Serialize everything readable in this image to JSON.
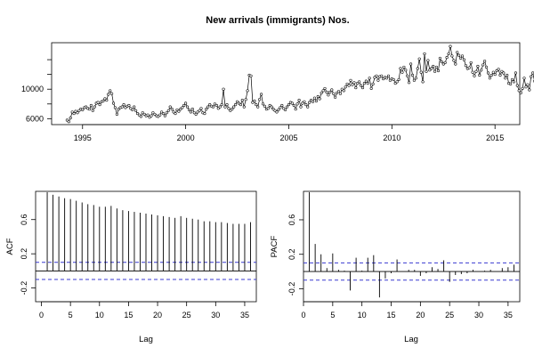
{
  "chart_data": [
    {
      "type": "line",
      "title": "New arrivals (immigrants) Nos.",
      "xlabel": "",
      "ylabel": "",
      "xlim": [
        1993.5,
        2016.2
      ],
      "ylim": [
        5200,
        16300
      ],
      "x_ticks": [
        1995,
        2000,
        2005,
        2010,
        2015
      ],
      "y_ticks": [
        6000,
        10000
      ],
      "grid": false,
      "start_year": 1994.25,
      "frequency": 12,
      "series": [
        {
          "values": [
            5800,
            5600,
            6100,
            6900,
            6700,
            7000,
            6800,
            7100,
            7300,
            7200,
            7500,
            7600,
            7400,
            7300,
            7800,
            7100,
            7600,
            8100,
            8200,
            7900,
            8300,
            8400,
            8700,
            8500,
            9300,
            9800,
            9400,
            8100,
            7500,
            6600,
            7300,
            7500,
            7600,
            7900,
            7500,
            7700,
            7800,
            7400,
            7200,
            7600,
            7100,
            6700,
            6500,
            6300,
            6800,
            6600,
            6400,
            6500,
            6200,
            6400,
            6800,
            6600,
            6400,
            6300,
            6500,
            6900,
            6700,
            6400,
            6800,
            7100,
            7600,
            7300,
            6900,
            6700,
            7200,
            7000,
            7300,
            7500,
            7800,
            8100,
            7600,
            7200,
            6900,
            7300,
            6800,
            6600,
            6900,
            7100,
            7400,
            6800,
            6700,
            7300,
            7600,
            7900,
            7700,
            7600,
            8000,
            7800,
            7400,
            7600,
            7900,
            10000,
            7600,
            7900,
            7400,
            7100,
            7300,
            7600,
            7900,
            8300,
            8100,
            7900,
            8500,
            7600,
            8600,
            9800,
            11900,
            11800,
            8200,
            8400,
            7900,
            7600,
            8600,
            9300,
            8000,
            7700,
            7300,
            7400,
            7800,
            7600,
            7300,
            7100,
            6900,
            7200,
            7500,
            7800,
            7400,
            7200,
            7600,
            7900,
            8200,
            8100,
            7800,
            7300,
            8000,
            8500,
            7600,
            8100,
            8300,
            7900,
            7600,
            8200,
            8500,
            8300,
            8800,
            8400,
            9000,
            8700,
            9500,
            9800,
            10100,
            9600,
            9200,
            9600,
            9900,
            9400,
            8900,
            9500,
            9700,
            9400,
            10000,
            9800,
            10300,
            10700,
            10500,
            11200,
            10600,
            10900,
            10200,
            10800,
            11000,
            10500,
            10200,
            10800,
            11100,
            10800,
            11500,
            10100,
            10700,
            11600,
            11800,
            11200,
            11700,
            11800,
            11400,
            11600,
            11500,
            11800,
            11200,
            11400,
            11300,
            10800,
            11000,
            11300,
            12800,
            12300,
            13000,
            12600,
            11800,
            10900,
            13400,
            11900,
            11200,
            11500,
            12800,
            14100,
            12300,
            11000,
            14800,
            12400,
            13900,
            12600,
            12800,
            13100,
            12400,
            13000,
            12500,
            14200,
            13700,
            13400,
            13600,
            14300,
            14800,
            15800,
            14500,
            13900,
            13400,
            15000,
            14600,
            14200,
            14500,
            14000,
            13200,
            12800,
            12900,
            13600,
            12300,
            11800,
            12400,
            13100,
            11900,
            12600,
            13300,
            13800,
            13000,
            12200,
            11500,
            11900,
            12300,
            12000,
            12500,
            12700,
            11900,
            12400,
            12200,
            11500,
            11900,
            10800,
            10700,
            11300,
            11000,
            12200,
            10500,
            9800,
            9500,
            10100,
            11500,
            10300,
            10600,
            9900,
            11700,
            12200,
            11100,
            10500,
            10600,
            10800,
            11000,
            10600,
            11100,
            11800,
            12600,
            13100,
            12800,
            12900,
            13400,
            14000,
            14400,
            14600,
            13700,
            13000,
            12300,
            13300,
            12600,
            12800,
            11900,
            13400,
            12500,
            12100,
            13000,
            12500,
            11800,
            12200,
            12900,
            13200,
            12500,
            12900,
            13700,
            12800,
            13100,
            12600,
            13000,
            13400,
            12700,
            12200,
            11800,
            12400,
            12000,
            11700,
            12600,
            11800,
            12100,
            11900,
            11600,
            12000,
            11800,
            11300,
            11500,
            12100,
            11700,
            11200,
            10800,
            11300,
            10400,
            10300,
            11200,
            10800,
            11500,
            10900,
            10600,
            11800,
            12500,
            11600,
            11900,
            12100,
            12900,
            11700,
            11300
          ]
        }
      ]
    },
    {
      "type": "bar",
      "xlabel": "Lag",
      "ylabel": "ACF",
      "xlim": [
        -1,
        37
      ],
      "ylim": [
        -0.36,
        0.93
      ],
      "x_ticks": [
        0,
        5,
        10,
        15,
        20,
        25,
        30,
        35
      ],
      "y_ticks": [
        -0.2,
        0.2,
        0.6
      ],
      "confidence_bound": 0.1,
      "lags": [
        1,
        2,
        3,
        4,
        5,
        6,
        7,
        8,
        9,
        10,
        11,
        12,
        13,
        14,
        15,
        16,
        17,
        18,
        19,
        20,
        21,
        22,
        23,
        24,
        25,
        26,
        27,
        28,
        29,
        30,
        31,
        32,
        33,
        34,
        35,
        36
      ],
      "values": [
        0.92,
        0.89,
        0.87,
        0.85,
        0.84,
        0.82,
        0.8,
        0.78,
        0.77,
        0.75,
        0.75,
        0.76,
        0.73,
        0.71,
        0.7,
        0.69,
        0.68,
        0.67,
        0.66,
        0.65,
        0.64,
        0.63,
        0.62,
        0.64,
        0.62,
        0.61,
        0.6,
        0.58,
        0.58,
        0.57,
        0.57,
        0.56,
        0.55,
        0.55,
        0.55,
        0.57
      ]
    },
    {
      "type": "bar",
      "xlabel": "Lag",
      "ylabel": "PACF",
      "xlim": [
        0,
        37
      ],
      "ylim": [
        -0.35,
        0.93
      ],
      "x_ticks": [
        0,
        5,
        10,
        15,
        20,
        25,
        30,
        35
      ],
      "y_ticks": [
        -0.2,
        0.2,
        0.6
      ],
      "confidence_bound": 0.1,
      "lags": [
        1,
        2,
        3,
        4,
        5,
        6,
        7,
        8,
        9,
        10,
        11,
        12,
        13,
        14,
        15,
        16,
        17,
        18,
        19,
        20,
        21,
        22,
        23,
        24,
        25,
        26,
        27,
        28,
        29,
        30,
        31,
        32,
        33,
        34,
        35,
        36
      ],
      "values": [
        0.92,
        0.32,
        0.2,
        0.04,
        0.21,
        0.02,
        0.01,
        -0.22,
        0.16,
        0.01,
        0.16,
        0.19,
        -0.3,
        -0.08,
        -0.02,
        0.14,
        0.0,
        0.02,
        0.02,
        -0.05,
        -0.02,
        0.05,
        0.03,
        0.13,
        -0.12,
        -0.04,
        -0.03,
        -0.02,
        0.02,
        0.0,
        0.01,
        0.02,
        0.0,
        0.04,
        0.05,
        0.08
      ]
    }
  ],
  "colors": {
    "line": "#000000",
    "confidence": "#3a3ad0",
    "axis": "#000000"
  }
}
